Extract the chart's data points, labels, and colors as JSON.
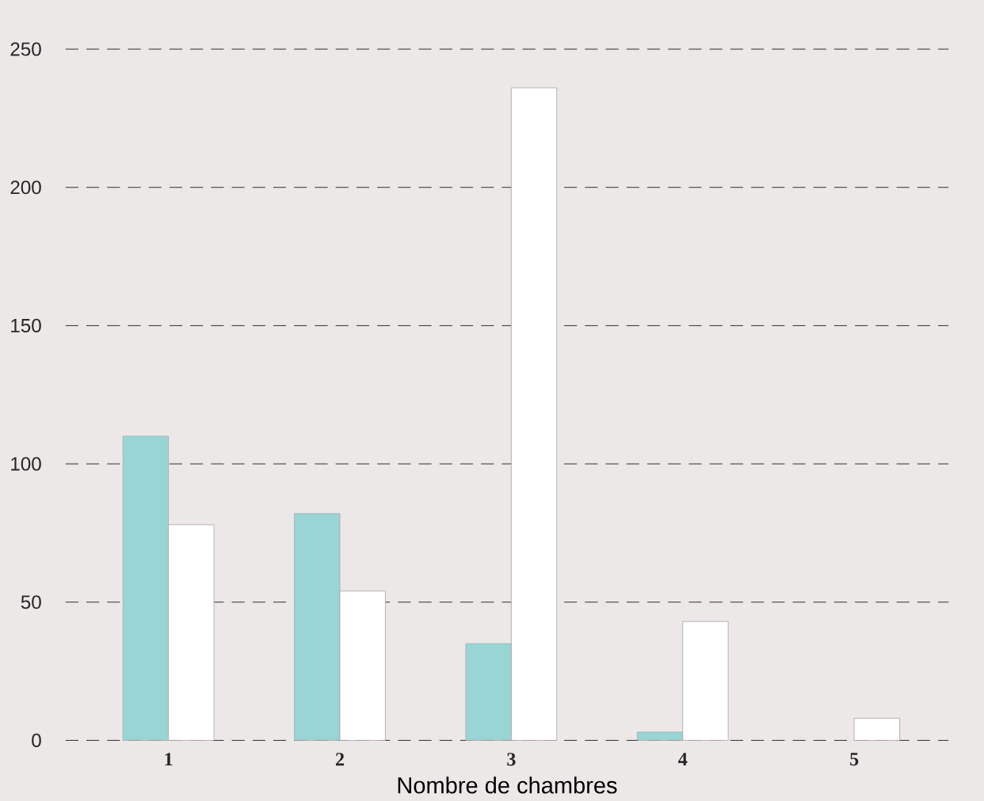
{
  "chart_data": {
    "type": "bar",
    "xlabel": "Nombre de chambres",
    "categories": [
      "1",
      "2",
      "3",
      "4",
      "5"
    ],
    "series": [
      {
        "color": "#9ad5d6",
        "values": [
          110,
          82,
          35,
          3,
          null
        ]
      },
      {
        "color": "#ffffff",
        "values": [
          78,
          54,
          236,
          43,
          8
        ]
      }
    ],
    "ylim": [
      0,
      250
    ],
    "yticks": [
      0,
      50,
      100,
      150,
      200,
      250
    ],
    "grid": "y",
    "line_style": "dashed"
  }
}
